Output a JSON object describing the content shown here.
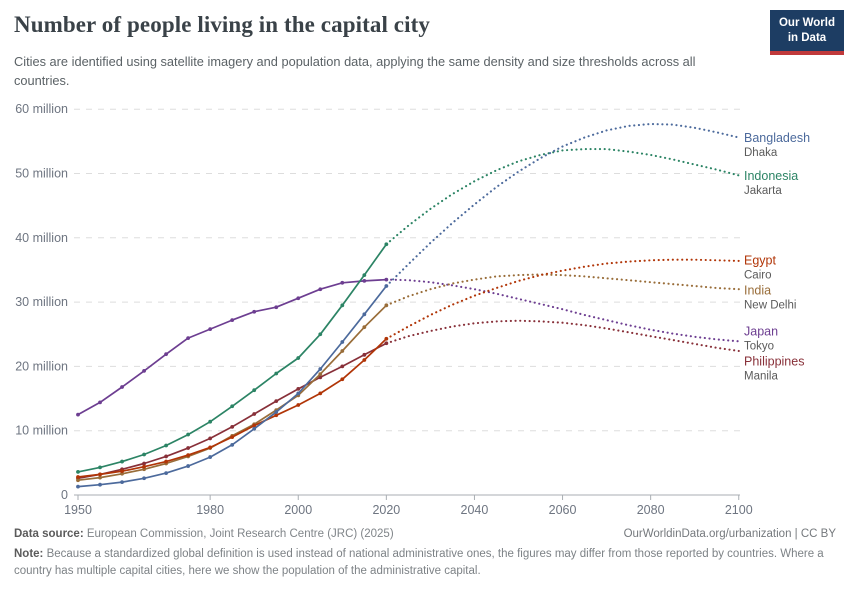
{
  "header": {
    "title": "Number of people living in the capital city",
    "subtitle": "Cities are identified using satellite imagery and population data, applying the same density and size thresholds across all countries.",
    "logo": {
      "line1": "Our World",
      "line2": "in Data"
    }
  },
  "footer": {
    "source_label": "Data source:",
    "source_text": " European Commission, Joint Research Centre (JRC) (2025)",
    "link": "OurWorldinData.org/urbanization | CC BY",
    "note_label": "Note:",
    "note_text": " Because a standardized global definition is used instead of national administrative ones, the figures may differ from those reported by countries. Where a country has multiple capital cities, here we show the population of the administrative capital."
  },
  "chart_data": {
    "type": "line",
    "title": "Number of people living in the capital city",
    "unit": "people",
    "value_scale": "millions",
    "grid": "dashed-horizontal",
    "legend_position": "right-end-of-lines",
    "projection_style": "dotted",
    "xlim": [
      1947,
      2103
    ],
    "ylim": [
      0,
      62
    ],
    "x_ticks": [
      1950,
      1980,
      2000,
      2020,
      2040,
      2060,
      2080,
      2100
    ],
    "y_ticks": [
      {
        "value": 0,
        "label": "0"
      },
      {
        "value": 10,
        "label": "10 million"
      },
      {
        "value": 20,
        "label": "20 million"
      },
      {
        "value": 30,
        "label": "30 million"
      },
      {
        "value": 40,
        "label": "40 million"
      },
      {
        "value": 50,
        "label": "50 million"
      },
      {
        "value": 60,
        "label": "60 million"
      }
    ],
    "historical_years": [
      1950,
      1955,
      1960,
      1965,
      1970,
      1975,
      1980,
      1985,
      1990,
      1995,
      2000,
      2005,
      2010,
      2015,
      2020
    ],
    "projection_years": [
      2020,
      2025,
      2030,
      2035,
      2040,
      2045,
      2050,
      2055,
      2060,
      2065,
      2070,
      2075,
      2080,
      2085,
      2090,
      2095,
      2100
    ],
    "series": [
      {
        "name": "Bangladesh",
        "city": "Dhaka",
        "color": "#4C6A9C",
        "historical": [
          1.3,
          1.6,
          2.0,
          2.6,
          3.4,
          4.5,
          5.9,
          7.8,
          10.3,
          12.9,
          15.8,
          19.6,
          23.8,
          28.1,
          32.5
        ],
        "projection": [
          32.5,
          35.9,
          39.2,
          42.3,
          45.2,
          47.9,
          50.3,
          52.4,
          54.2,
          55.6,
          56.7,
          57.4,
          57.7,
          57.6,
          57.1,
          56.4,
          55.6
        ]
      },
      {
        "name": "Indonesia",
        "city": "Jakarta",
        "color": "#2C8465",
        "historical": [
          3.6,
          4.3,
          5.2,
          6.3,
          7.7,
          9.4,
          11.4,
          13.8,
          16.3,
          18.9,
          21.3,
          25.0,
          29.5,
          34.2,
          39.0
        ],
        "projection": [
          39.0,
          41.9,
          44.5,
          46.8,
          48.8,
          50.5,
          51.9,
          52.9,
          53.6,
          53.8,
          53.8,
          53.4,
          52.9,
          52.2,
          51.4,
          50.6,
          49.7
        ]
      },
      {
        "name": "Egypt",
        "city": "Cairo",
        "color": "#B13507",
        "historical": [
          2.8,
          3.2,
          3.7,
          4.4,
          5.2,
          6.2,
          7.4,
          9.0,
          10.8,
          12.4,
          14.0,
          15.8,
          18.0,
          21.0,
          24.3
        ],
        "projection": [
          24.3,
          26.2,
          28.0,
          29.6,
          31.0,
          32.2,
          33.3,
          34.2,
          34.9,
          35.5,
          36.0,
          36.3,
          36.5,
          36.6,
          36.6,
          36.5,
          36.4
        ]
      },
      {
        "name": "India",
        "city": "New Delhi",
        "color": "#996D39",
        "historical": [
          2.3,
          2.7,
          3.3,
          4.0,
          4.9,
          6.0,
          7.3,
          9.2,
          11.0,
          13.2,
          15.5,
          18.8,
          22.4,
          26.1,
          29.5
        ],
        "projection": [
          29.5,
          30.9,
          32.0,
          32.9,
          33.5,
          34.0,
          34.2,
          34.3,
          34.2,
          34.0,
          33.7,
          33.4,
          33.1,
          32.8,
          32.5,
          32.2,
          32.0
        ]
      },
      {
        "name": "Japan",
        "city": "Tokyo",
        "color": "#6D3E91",
        "historical": [
          12.5,
          14.4,
          16.8,
          19.3,
          21.9,
          24.4,
          25.8,
          27.2,
          28.5,
          29.2,
          30.6,
          32.0,
          33.0,
          33.3,
          33.5
        ],
        "projection": [
          33.5,
          33.4,
          33.1,
          32.6,
          32.0,
          31.3,
          30.5,
          29.7,
          28.9,
          28.0,
          27.2,
          26.4,
          25.7,
          25.1,
          24.6,
          24.2,
          23.9
        ]
      },
      {
        "name": "Philippines",
        "city": "Manila",
        "color": "#883039",
        "historical": [
          2.6,
          3.2,
          4.0,
          4.9,
          6.0,
          7.3,
          8.8,
          10.6,
          12.6,
          14.6,
          16.5,
          18.3,
          20.0,
          21.8,
          23.6
        ],
        "projection": [
          23.6,
          24.7,
          25.5,
          26.2,
          26.7,
          27.0,
          27.1,
          27.0,
          26.8,
          26.4,
          25.9,
          25.3,
          24.7,
          24.1,
          23.5,
          22.9,
          22.4
        ]
      }
    ]
  }
}
